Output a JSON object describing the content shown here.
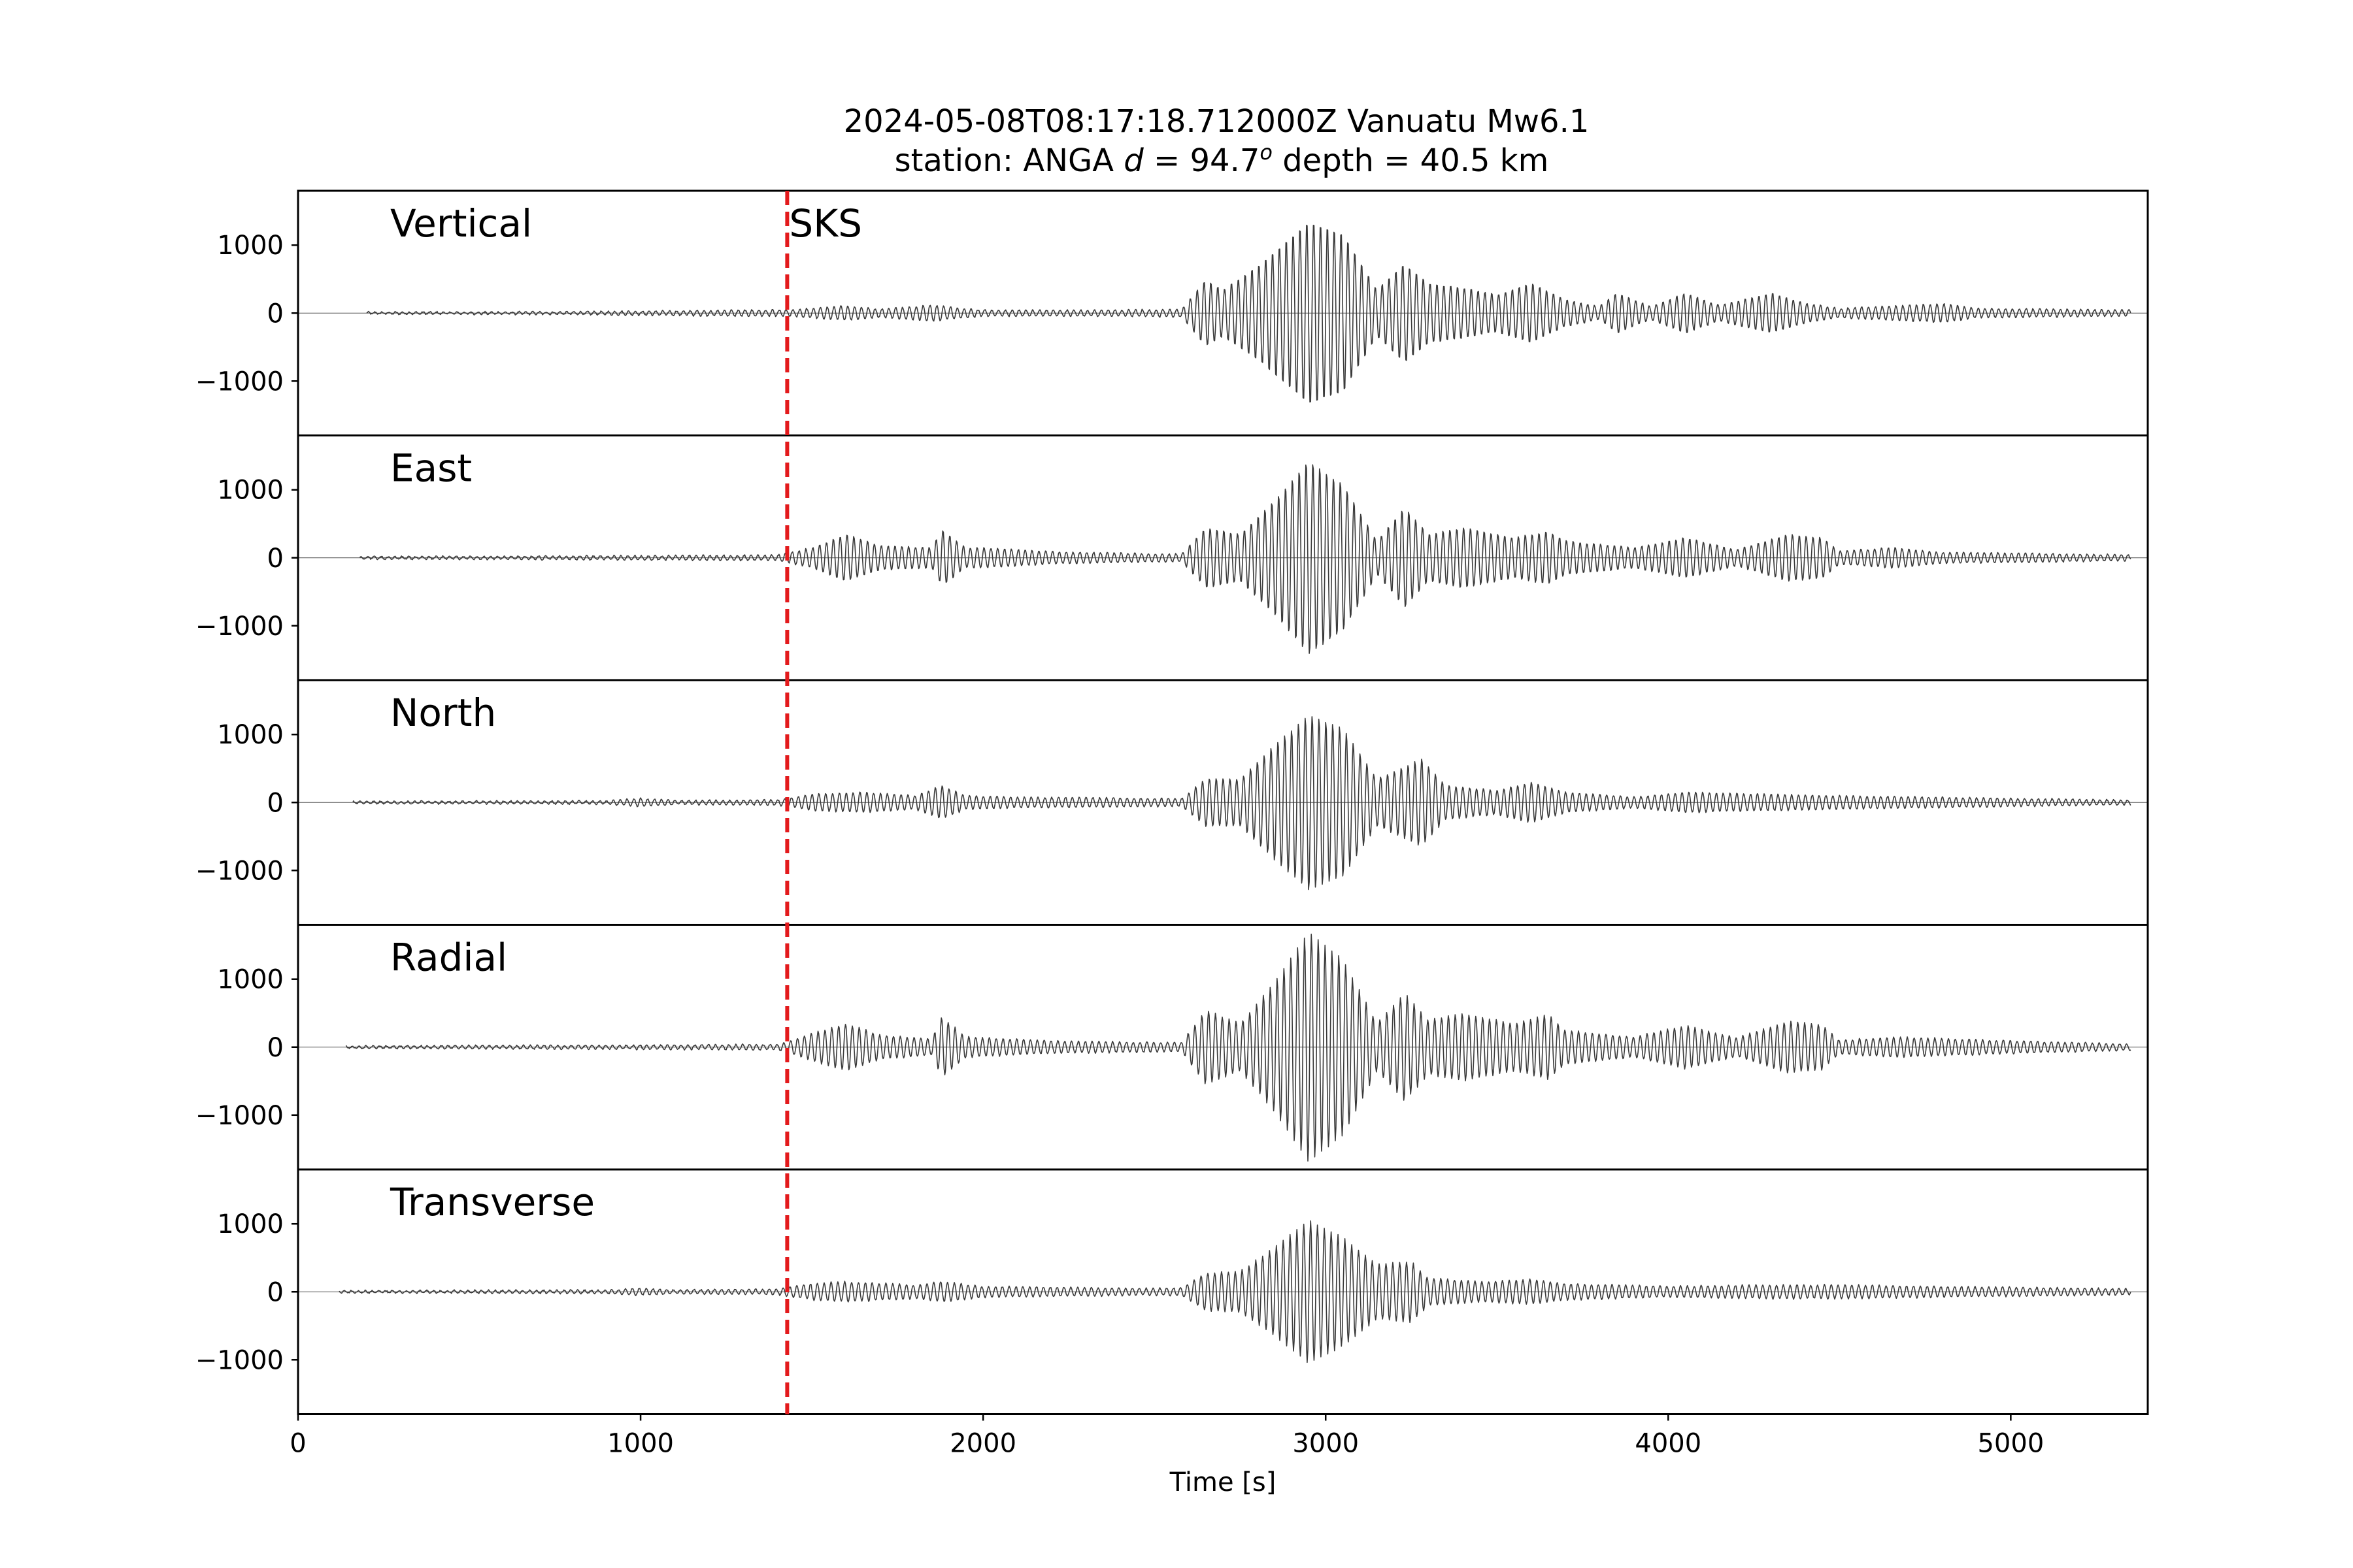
{
  "chart_data": {
    "type": "line",
    "title": {
      "line1": "2024-05-08T08:17:18.712000Z Vanuatu Mw6.1",
      "line2_prefix": "station: ANGA ",
      "line2_d": "d",
      "line2_eq": " = 94.7",
      "line2_sup": "o",
      "line2_suffix": " depth = 40.5 km"
    },
    "xlabel": "Time [s]",
    "xlim": [
      0,
      5400
    ],
    "xticks": [
      0,
      1000,
      2000,
      3000,
      4000,
      5000
    ],
    "xtick_labels": [
      "0",
      "1000",
      "2000",
      "3000",
      "4000",
      "5000"
    ],
    "ylim": [
      -1800,
      1800
    ],
    "yticks": [
      1000,
      0,
      -1000
    ],
    "ytick_labels": [
      "1000",
      "0",
      "−1000"
    ],
    "phase_marker": {
      "label": "SKS",
      "time": 1428,
      "color": "#e31a1c"
    },
    "trace_color": "#3a3a3a",
    "sample_step_s": 2,
    "panels": [
      {
        "name": "Vertical",
        "period_s": 20,
        "noise": 20,
        "envelope": [
          [
            0,
            15
          ],
          [
            800,
            20
          ],
          [
            1000,
            30
          ],
          [
            1300,
            45
          ],
          [
            1428,
            45
          ],
          [
            1600,
            110
          ],
          [
            1700,
            60
          ],
          [
            1850,
            120
          ],
          [
            2000,
            45
          ],
          [
            2400,
            45
          ],
          [
            2580,
            60
          ],
          [
            2650,
            500
          ],
          [
            2700,
            350
          ],
          [
            2800,
            700
          ],
          [
            2950,
            1380
          ],
          [
            3050,
            1200
          ],
          [
            3150,
            350
          ],
          [
            3230,
            750
          ],
          [
            3300,
            450
          ],
          [
            3400,
            380
          ],
          [
            3500,
            280
          ],
          [
            3600,
            450
          ],
          [
            3700,
            200
          ],
          [
            3800,
            100
          ],
          [
            3850,
            300
          ],
          [
            3950,
            100
          ],
          [
            4050,
            300
          ],
          [
            4150,
            120
          ],
          [
            4300,
            300
          ],
          [
            4400,
            150
          ],
          [
            4500,
            70
          ],
          [
            4800,
            140
          ],
          [
            4900,
            70
          ],
          [
            5400,
            40
          ]
        ]
      },
      {
        "name": "East",
        "period_s": 20,
        "noise": 20,
        "envelope": [
          [
            0,
            15
          ],
          [
            1000,
            30
          ],
          [
            1400,
            40
          ],
          [
            1500,
            150
          ],
          [
            1600,
            350
          ],
          [
            1700,
            180
          ],
          [
            1850,
            150
          ],
          [
            1880,
            420
          ],
          [
            1950,
            150
          ],
          [
            2000,
            150
          ],
          [
            2200,
            90
          ],
          [
            2500,
            60
          ],
          [
            2580,
            60
          ],
          [
            2650,
            450
          ],
          [
            2750,
            350
          ],
          [
            2850,
            850
          ],
          [
            2950,
            1450
          ],
          [
            3050,
            1100
          ],
          [
            3150,
            250
          ],
          [
            3230,
            750
          ],
          [
            3300,
            350
          ],
          [
            3400,
            450
          ],
          [
            3550,
            300
          ],
          [
            3650,
            400
          ],
          [
            3700,
            250
          ],
          [
            3900,
            150
          ],
          [
            4050,
            300
          ],
          [
            4200,
            120
          ],
          [
            4350,
            350
          ],
          [
            4450,
            300
          ],
          [
            4500,
            100
          ],
          [
            4650,
            150
          ],
          [
            4800,
            80
          ],
          [
            5000,
            70
          ],
          [
            5400,
            40
          ]
        ]
      },
      {
        "name": "North",
        "period_s": 20,
        "noise": 18,
        "envelope": [
          [
            0,
            15
          ],
          [
            900,
            25
          ],
          [
            1000,
            60
          ],
          [
            1100,
            30
          ],
          [
            1400,
            40
          ],
          [
            1500,
            120
          ],
          [
            1650,
            150
          ],
          [
            1800,
            100
          ],
          [
            1880,
            250
          ],
          [
            1950,
            100
          ],
          [
            2100,
            80
          ],
          [
            2500,
            60
          ],
          [
            2580,
            60
          ],
          [
            2650,
            350
          ],
          [
            2750,
            350
          ],
          [
            2850,
            850
          ],
          [
            2950,
            1300
          ],
          [
            3050,
            1100
          ],
          [
            3150,
            350
          ],
          [
            3280,
            650
          ],
          [
            3350,
            250
          ],
          [
            3500,
            180
          ],
          [
            3600,
            300
          ],
          [
            3700,
            150
          ],
          [
            3900,
            80
          ],
          [
            4050,
            150
          ],
          [
            4300,
            120
          ],
          [
            4500,
            100
          ],
          [
            5000,
            60
          ],
          [
            5400,
            30
          ]
        ]
      },
      {
        "name": "Radial",
        "period_s": 20,
        "noise": 20,
        "envelope": [
          [
            0,
            15
          ],
          [
            1000,
            30
          ],
          [
            1400,
            40
          ],
          [
            1500,
            200
          ],
          [
            1600,
            350
          ],
          [
            1700,
            180
          ],
          [
            1850,
            120
          ],
          [
            1880,
            450
          ],
          [
            1950,
            150
          ],
          [
            2200,
            90
          ],
          [
            2500,
            70
          ],
          [
            2580,
            70
          ],
          [
            2650,
            550
          ],
          [
            2750,
            350
          ],
          [
            2850,
            950
          ],
          [
            2950,
            1700
          ],
          [
            3050,
            1300
          ],
          [
            3150,
            350
          ],
          [
            3230,
            800
          ],
          [
            3300,
            400
          ],
          [
            3400,
            500
          ],
          [
            3550,
            350
          ],
          [
            3650,
            480
          ],
          [
            3700,
            250
          ],
          [
            3900,
            150
          ],
          [
            4050,
            320
          ],
          [
            4200,
            140
          ],
          [
            4350,
            380
          ],
          [
            4450,
            330
          ],
          [
            4500,
            100
          ],
          [
            4650,
            150
          ],
          [
            4850,
            120
          ],
          [
            5100,
            80
          ],
          [
            5400,
            40
          ]
        ]
      },
      {
        "name": "Transverse",
        "period_s": 20,
        "noise": 20,
        "envelope": [
          [
            0,
            15
          ],
          [
            900,
            25
          ],
          [
            1000,
            50
          ],
          [
            1100,
            30
          ],
          [
            1400,
            40
          ],
          [
            1500,
            120
          ],
          [
            1600,
            150
          ],
          [
            1800,
            100
          ],
          [
            1880,
            150
          ],
          [
            2000,
            80
          ],
          [
            2500,
            50
          ],
          [
            2580,
            60
          ],
          [
            2650,
            280
          ],
          [
            2750,
            300
          ],
          [
            2850,
            650
          ],
          [
            2950,
            1050
          ],
          [
            3050,
            800
          ],
          [
            3150,
            400
          ],
          [
            3250,
            450
          ],
          [
            3300,
            200
          ],
          [
            3450,
            150
          ],
          [
            3600,
            180
          ],
          [
            3700,
            120
          ],
          [
            4000,
            80
          ],
          [
            4300,
            100
          ],
          [
            4500,
            100
          ],
          [
            5400,
            40
          ]
        ]
      }
    ]
  }
}
